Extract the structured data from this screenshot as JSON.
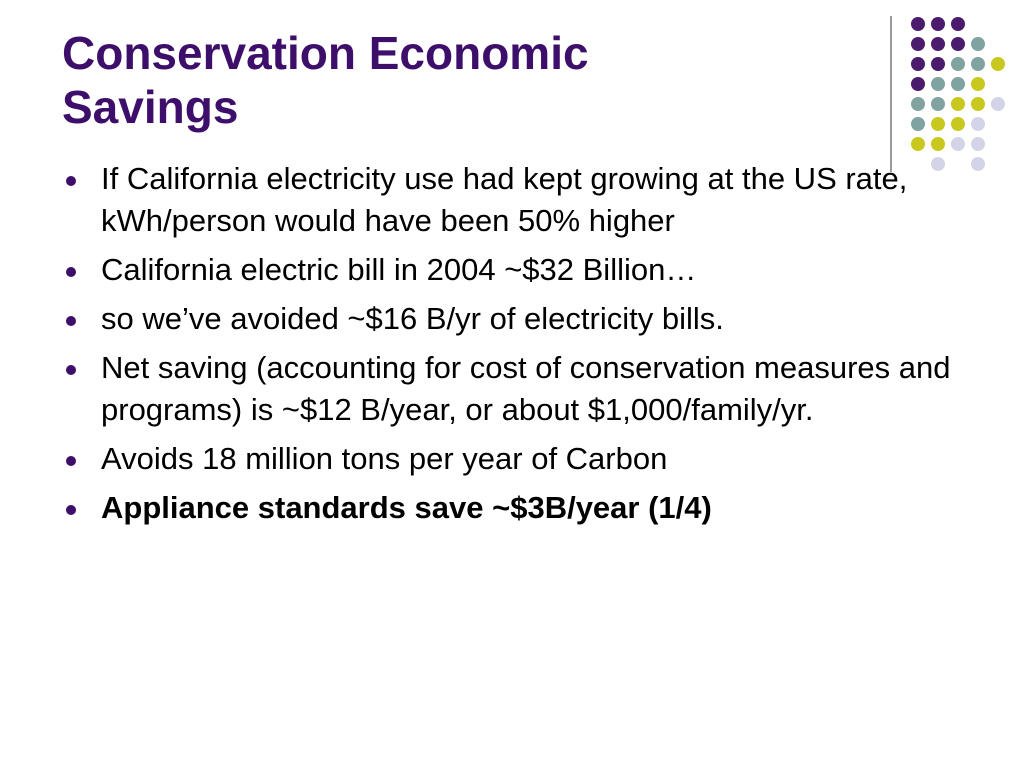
{
  "slide": {
    "title_line1": "Conservation Economic",
    "title_line2": "Savings",
    "bullets": [
      "If California electricity use had kept growing at the US rate, kWh/person would have been 50% higher",
      "California electric bill in 2004 ~$32 Billion…",
      "so we’ve avoided ~$16 B/yr of electricity bills.",
      "Net saving (accounting for cost of conservation measures and programs) is ~$12 B/year, or about $1,000/family/yr.",
      "Avoids 18 million tons per year of Carbon",
      "Appliance standards save ~$3B/year (1/4)"
    ]
  },
  "theme": {
    "title_color": "#3d0f6b",
    "dot_colors": {
      "purple": "#4b1b6e",
      "teal": "#7fa3a1",
      "lime": "#c8c81e",
      "lavender": "#d4d4e8"
    }
  }
}
